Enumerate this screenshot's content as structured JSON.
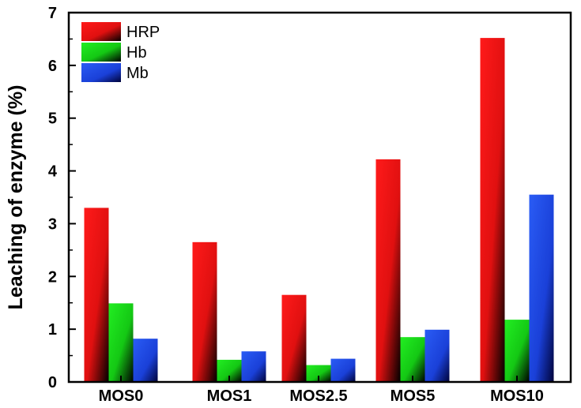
{
  "chart_data": {
    "type": "bar",
    "title": "",
    "xlabel": "",
    "ylabel": "Leaching of enzyme (%)",
    "ylim": [
      0,
      7
    ],
    "yticks": [
      "0",
      "1",
      "2",
      "3",
      "4",
      "5",
      "6",
      "7"
    ],
    "categories": [
      "MOS0",
      "MOS1",
      "MOS2.5",
      "MOS5",
      "MOS10"
    ],
    "series": [
      {
        "name": "HRP",
        "color": "#ff1a1a",
        "values": [
          3.3,
          2.65,
          1.65,
          4.22,
          6.52
        ]
      },
      {
        "name": "Hb",
        "color": "#22ee22",
        "values": [
          1.49,
          0.42,
          0.32,
          0.85,
          1.18
        ]
      },
      {
        "name": "Mb",
        "color": "#2255ee",
        "values": [
          0.82,
          0.58,
          0.44,
          0.99,
          3.55
        ]
      }
    ],
    "grid": false,
    "legend": "top-left"
  }
}
